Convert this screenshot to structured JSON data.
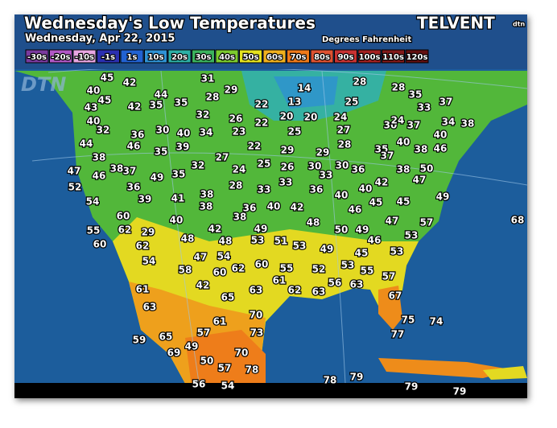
{
  "header": {
    "title": "Wednesday's Low Temperatures",
    "date": "Wednesday, Apr 22, 2015",
    "units": "Degrees Fahrenheit",
    "brand": "TELVENT",
    "brand_badge": "dtn",
    "watermark": "DTN"
  },
  "legend": [
    {
      "label": "-30s",
      "color": "#7a3a9e"
    },
    {
      "label": "-20s",
      "color": "#b158c6"
    },
    {
      "label": "-10s",
      "color": "#e8a6e2"
    },
    {
      "label": "-1s",
      "color": "#2b2fb0"
    },
    {
      "label": "1s",
      "color": "#2262d2"
    },
    {
      "label": "10s",
      "color": "#2f92d4"
    },
    {
      "label": "20s",
      "color": "#2db0a6"
    },
    {
      "label": "30s",
      "color": "#3bb25e"
    },
    {
      "label": "40s",
      "color": "#7ccb2e"
    },
    {
      "label": "50s",
      "color": "#e4e21e"
    },
    {
      "label": "60s",
      "color": "#f0b01e"
    },
    {
      "label": "70s",
      "color": "#ef7a1a"
    },
    {
      "label": "80s",
      "color": "#dd5232"
    },
    {
      "label": "90s",
      "color": "#c73232"
    },
    {
      "label": "100s",
      "color": "#a42222"
    },
    {
      "label": "110s",
      "color": "#821a1a"
    },
    {
      "label": "120s",
      "color": "#621010"
    }
  ],
  "temperatures": [
    45,
    42,
    31,
    28,
    28,
    35,
    37,
    40,
    44,
    29,
    14,
    33,
    45,
    42,
    35,
    35,
    28,
    22,
    13,
    25,
    43,
    32,
    26,
    20,
    20,
    24,
    34,
    38,
    40,
    22,
    30,
    37,
    24,
    32,
    36,
    30,
    40,
    34,
    23,
    25,
    27,
    40,
    44,
    46,
    39,
    22,
    28,
    40,
    38,
    35,
    27,
    29,
    29,
    35,
    37,
    38,
    46,
    47,
    38,
    37,
    32,
    24,
    25,
    26,
    30,
    30,
    36,
    38,
    50,
    46,
    49,
    35,
    33,
    47,
    52,
    36,
    28,
    33,
    33,
    36,
    40,
    40,
    42,
    49,
    54,
    39,
    41,
    38,
    38,
    36,
    40,
    42,
    46,
    45,
    45,
    60,
    40,
    38,
    48,
    47,
    57,
    68,
    55,
    62,
    29,
    42,
    49,
    50,
    49,
    53,
    60,
    48,
    48,
    53,
    51,
    53,
    49,
    46,
    62,
    47,
    54,
    45,
    53,
    54,
    58,
    60,
    62,
    60,
    55,
    52,
    53,
    55,
    42,
    61,
    56,
    63,
    57,
    61,
    65,
    63,
    62,
    63,
    67,
    63,
    70,
    75,
    74,
    61,
    73,
    77,
    59,
    65,
    57,
    49,
    69,
    70,
    50,
    57,
    78,
    78,
    79,
    56,
    54,
    79,
    79
  ]
}
